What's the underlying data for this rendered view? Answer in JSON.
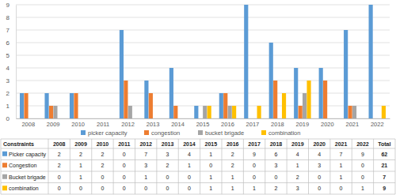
{
  "chart_data": {
    "type": "bar",
    "categories": [
      "2008",
      "2009",
      "2010",
      "2011",
      "2012",
      "2013",
      "2014",
      "2015",
      "2016",
      "2017",
      "2018",
      "2019",
      "2020",
      "2021",
      "2022"
    ],
    "series": [
      {
        "name": "picker capacity",
        "color": "#5b9bd5",
        "values": [
          2,
          2,
          2,
          0,
          7,
          3,
          4,
          1,
          2,
          9,
          6,
          4,
          4,
          7,
          9
        ]
      },
      {
        "name": "congestion",
        "color": "#ed7d31",
        "values": [
          2,
          1,
          2,
          0,
          3,
          2,
          1,
          0,
          2,
          0,
          3,
          1,
          3,
          1,
          0
        ]
      },
      {
        "name": "bucket brigade",
        "color": "#a5a5a5",
        "values": [
          0,
          1,
          0,
          0,
          1,
          0,
          0,
          1,
          1,
          0,
          0,
          2,
          0,
          1,
          0
        ]
      },
      {
        "name": "combination",
        "color": "#ffc000",
        "values": [
          0,
          0,
          0,
          0,
          0,
          0,
          0,
          1,
          1,
          1,
          2,
          3,
          0,
          0,
          1
        ]
      }
    ],
    "ylim": [
      0,
      9
    ],
    "yticks": [
      0,
      1,
      2,
      3,
      4,
      5,
      6,
      7,
      8,
      9
    ],
    "grid": true,
    "legend": "bottom",
    "table_header": "Constraints",
    "total_label": "Total",
    "row_labels": [
      "Picker capacity",
      "Congestion",
      "Bucket brigade",
      "combination"
    ],
    "totals": [
      62,
      21,
      7,
      9
    ]
  }
}
